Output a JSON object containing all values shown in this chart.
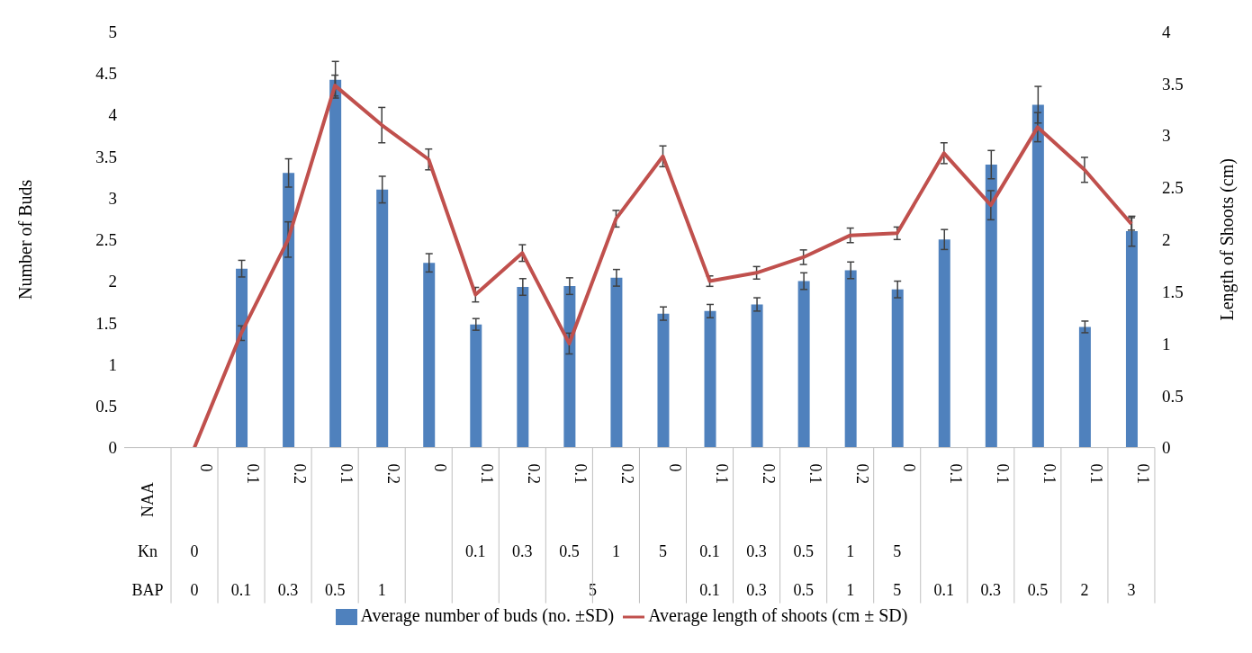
{
  "chart_data": {
    "type": "bar",
    "xlabel": null,
    "ylabel": "Number of Buds",
    "y2label": "Length of Shoots (cm)",
    "categories": [
      "0",
      "0.1",
      "0.2",
      "0.1",
      "0.2",
      "0",
      "0.1",
      "0.2",
      "0.1",
      "0.2",
      "0",
      "0.1",
      "0.2",
      "0.1",
      "0.2",
      "0",
      "0.1",
      "0.1",
      "0.1",
      "0.1",
      "0.1"
    ],
    "series": [
      {
        "name": "Average number of buds (no. ±SD)",
        "color": "#4f81bd",
        "values": [
          0,
          2.15,
          3.3,
          4.42,
          3.1,
          2.22,
          1.48,
          1.93,
          1.94,
          2.04,
          1.61,
          1.64,
          1.72,
          2.0,
          2.13,
          1.9,
          2.5,
          3.4,
          4.12,
          1.45,
          2.6
        ],
        "errors": [
          null,
          0.1,
          0.17,
          0.22,
          0.16,
          0.11,
          0.07,
          0.1,
          0.1,
          0.1,
          0.08,
          0.08,
          0.08,
          0.1,
          0.1,
          0.1,
          0.12,
          0.17,
          0.22,
          0.07,
          0.18
        ]
      },
      {
        "name": "Average length of shoots (cm ± SD)",
        "type": "line",
        "axis": "y2",
        "color": "#c0504d",
        "values": [
          0,
          1.1,
          2.0,
          3.48,
          3.1,
          2.77,
          1.47,
          1.87,
          1.0,
          2.2,
          2.8,
          1.6,
          1.68,
          1.83,
          2.04,
          2.06,
          2.83,
          2.33,
          3.08,
          2.67,
          2.15
        ],
        "errors": [
          null,
          0.07,
          0.17,
          0.1,
          0.17,
          0.1,
          0.07,
          0.08,
          0.1,
          0.08,
          0.1,
          0.05,
          0.06,
          0.07,
          0.07,
          0.06,
          0.1,
          0.14,
          0.14,
          0.12,
          0.06
        ]
      }
    ],
    "ylim": [
      0,
      5
    ],
    "yticks": [
      0,
      0.5,
      1,
      1.5,
      2,
      2.5,
      3,
      3.5,
      4,
      4.5,
      5
    ],
    "y2lim": [
      0,
      4
    ],
    "y2ticks": [
      0,
      0.5,
      1,
      1.5,
      2,
      2.5,
      3,
      3.5,
      4
    ],
    "annotations": [
      "NAA",
      "Kn",
      "BAP",
      "0",
      "0.1",
      "0.3",
      "0.5",
      "1",
      "5",
      "0.1",
      "0.3",
      "0.5",
      "1",
      "5",
      "0",
      "0.1",
      "0.3",
      "0.5",
      "1",
      "5",
      "0.1",
      "0.3",
      "0.5",
      "1",
      "5",
      "0.1",
      "0.3",
      "0.5",
      "2",
      "3"
    ],
    "marker": "none",
    "grid": false,
    "legend": "bottom"
  }
}
